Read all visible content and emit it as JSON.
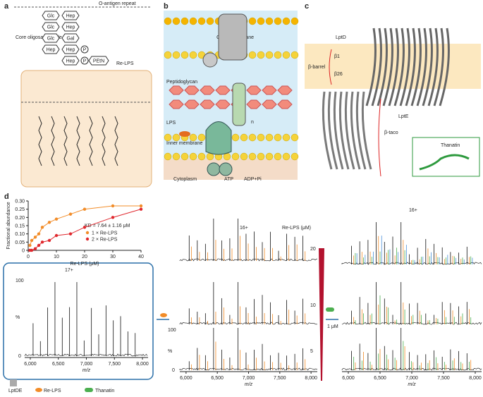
{
  "panel_labels": [
    "a",
    "b",
    "c",
    "d"
  ],
  "panel_a": {
    "o_antigen": "O-antigen repeat",
    "core": "Core oligosaccharide",
    "re_lps": "Re-LPS",
    "sugars": [
      "Glc",
      "Hep",
      "Glc",
      "Hep",
      "Glc",
      "Gal",
      "Hep",
      "Hep",
      "P",
      "Hep",
      "P",
      "PEtN"
    ]
  },
  "panel_b": {
    "outer": "Outer membrane",
    "d": "D",
    "e": "E",
    "peptidoglycan": "Peptidoglycan",
    "a": "A",
    "n": "n",
    "c": "C",
    "lps": "LPS",
    "inner": "Inner membrane",
    "f": "F",
    "g": "G",
    "b": "B",
    "cytoplasm": "Cytoplasm",
    "atp": "ATP",
    "adp": "ADP+Pi"
  },
  "panel_c": {
    "lptd": "LptD",
    "barrel": "β-barrel",
    "b1": "β1",
    "b26": "β26",
    "lpte": "LptE",
    "taco": "β-taco",
    "thanatin": "Thanatin"
  },
  "chart_data": {
    "type": "scatter",
    "xlabel": "Re-LPS (μM)",
    "ylabel": "Fractional abundance",
    "annotation": "KD = 7.64 ± 1.16 μM",
    "xlim": [
      0,
      40
    ],
    "xticks": [
      0,
      10,
      20,
      30,
      40
    ],
    "ylim": [
      0,
      0.3
    ],
    "yticks": [
      0,
      {
        "value": 0.05,
        "label": "0.05"
      },
      {
        "value": 0.1,
        "label": "0.10"
      },
      {
        "value": 0.15,
        "label": "0.15"
      },
      {
        "value": 0.2,
        "label": "0.20"
      },
      {
        "value": 0.25,
        "label": "0.25"
      },
      {
        "value": 0.3,
        "label": "0.30"
      }
    ],
    "series": [
      {
        "name": "1 × Re-LPS",
        "color": "#f28c28",
        "x": [
          0.6,
          1.25,
          2.5,
          3.75,
          5,
          7.5,
          10,
          15,
          20,
          30,
          40
        ],
        "values": [
          0.03,
          0.06,
          0.08,
          0.1,
          0.14,
          0.17,
          0.19,
          0.22,
          0.25,
          0.27,
          0.27
        ]
      },
      {
        "name": "2 × Re-LPS",
        "color": "#e0282e",
        "x": [
          0.6,
          1.25,
          2.5,
          3.75,
          5,
          7.5,
          10,
          15,
          20,
          30,
          40
        ],
        "values": [
          0,
          0,
          0.01,
          0.03,
          0.05,
          0.06,
          0.09,
          0.1,
          0.14,
          0.2,
          0.25
        ]
      }
    ]
  },
  "spectra": {
    "xticks": [
      "6,000",
      "6,500",
      "7,000",
      "7,500",
      "8,000"
    ],
    "xlabel": "m/z",
    "y_top": "100",
    "y_unit": "%",
    "y_zero": "0",
    "left_charge": "17+",
    "mid_charge": "16+",
    "right_charge": "16+",
    "conc_label": "Re-LPS (μM)",
    "concs": [
      "20",
      "10",
      "5"
    ],
    "thanatin_conc": "1 μM"
  },
  "legend": [
    "LptDE",
    "Re-LPS",
    "Thanatin"
  ]
}
